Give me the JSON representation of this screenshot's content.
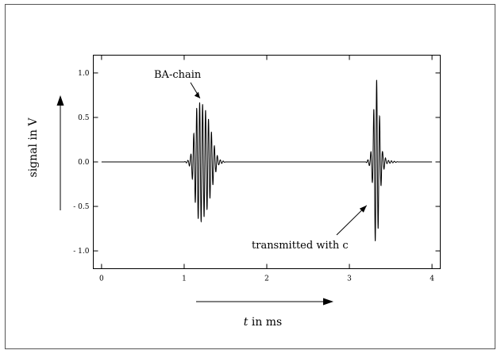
{
  "chart_data": {
    "type": "line",
    "title": "",
    "xlabel_prefix": "t",
    "xlabel_suffix": " in ms",
    "ylabel": "signal in V",
    "xlim": [
      -0.1,
      4.1
    ],
    "ylim": [
      -1.2,
      1.2
    ],
    "x_ticks": [
      0,
      1,
      2,
      3,
      4
    ],
    "x_tick_labels": [
      "0",
      "1",
      "2",
      "3",
      "4"
    ],
    "y_ticks": [
      1.0,
      0.5,
      0.0,
      -0.5,
      -1.0
    ],
    "y_tick_labels": [
      "1.0",
      "0.5",
      "0.0",
      "- 0.5",
      "- 1.0"
    ],
    "grid": false,
    "legend": "none",
    "series": [
      {
        "x": [
          0.0,
          0.5,
          1.0,
          1.05,
          1.08,
          1.1,
          1.13,
          1.15,
          1.18,
          1.2,
          1.23,
          1.26,
          1.29,
          1.32,
          1.35,
          1.38,
          1.42,
          1.5,
          2.0,
          2.5,
          3.0,
          3.2,
          3.25,
          3.28,
          3.3,
          3.32,
          3.34,
          3.36,
          3.38,
          3.4,
          3.45,
          3.6,
          4.0
        ],
        "y": [
          0.0,
          0.0,
          0.0,
          0.02,
          0.08,
          0.2,
          0.42,
          0.6,
          0.66,
          0.68,
          0.64,
          0.58,
          0.5,
          0.38,
          0.25,
          0.12,
          0.03,
          0.0,
          0.0,
          0.0,
          0.0,
          0.0,
          0.05,
          0.25,
          0.7,
          1.0,
          0.85,
          0.6,
          0.3,
          0.12,
          0.02,
          0.0,
          0.0
        ]
      }
    ],
    "annotations": [
      {
        "text": "BA-chain",
        "x": 1.23,
        "y": 0.68
      },
      {
        "text": "transmitted with c",
        "x": 3.2,
        "y": -0.48
      }
    ]
  }
}
